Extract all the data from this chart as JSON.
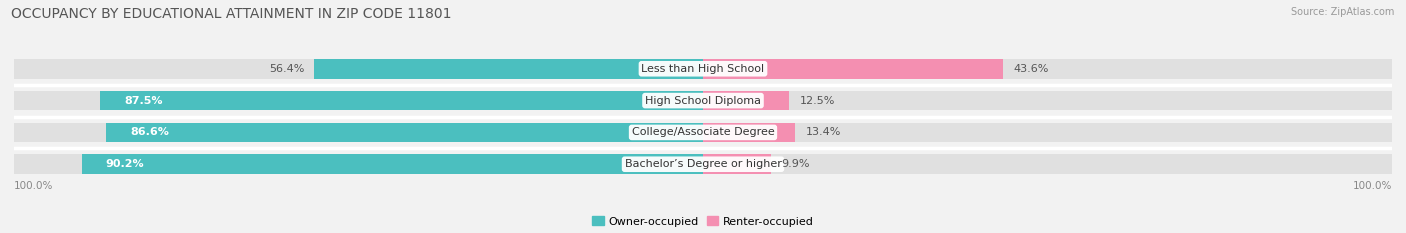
{
  "title": "OCCUPANCY BY EDUCATIONAL ATTAINMENT IN ZIP CODE 11801",
  "source": "Source: ZipAtlas.com",
  "categories": [
    "Less than High School",
    "High School Diploma",
    "College/Associate Degree",
    "Bachelor’s Degree or higher"
  ],
  "owner_pct": [
    56.4,
    87.5,
    86.6,
    90.2
  ],
  "renter_pct": [
    43.6,
    12.5,
    13.4,
    9.9
  ],
  "owner_color": "#4bbfbf",
  "renter_color": "#f48fb1",
  "background_color": "#f2f2f2",
  "bar_bg_color": "#e0e0e0",
  "title_fontsize": 10,
  "label_fontsize": 8,
  "bar_height": 0.62,
  "axis_label": "100.0%",
  "row_gap_color": "#ffffff"
}
